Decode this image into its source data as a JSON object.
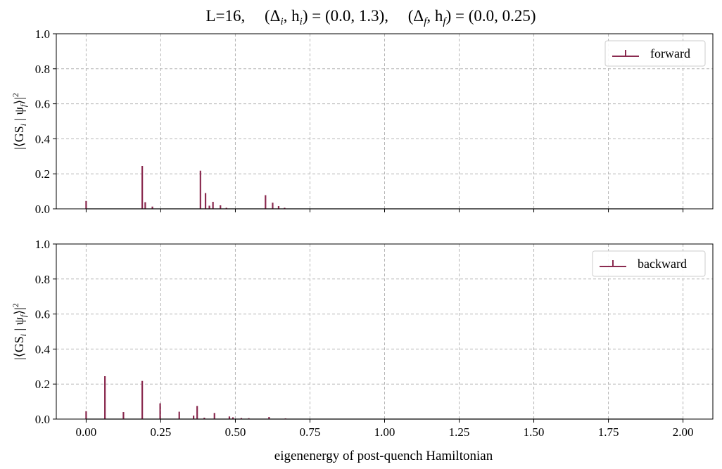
{
  "figure": {
    "title": "L=16,     (Δ_i, h_i) = (0.0, 1.3),    (Δ_f, h_f) = (0.0, 0.25)",
    "xlabel": "eigenenergy of post-quench Hamiltonian",
    "colors": {
      "stem": "#8a2a4f",
      "grid": "#b5b5b5",
      "baseline": "#000000"
    }
  },
  "chart_data": [
    {
      "type": "bar",
      "subtype": "stem",
      "panel": "top",
      "title": "L=16, (Δi, hi) = (0.0, 1.3), (Δf, hf) = (0.0, 0.25)",
      "xlabel": "",
      "ylabel": "|⟨GS_i | ψ_f⟩|²",
      "xlim": [
        -0.1,
        2.1
      ],
      "ylim": [
        0,
        1.0
      ],
      "xticks": [
        0.0,
        0.25,
        0.5,
        0.75,
        1.0,
        1.25,
        1.5,
        1.75,
        2.0
      ],
      "yticks": [
        0.0,
        0.2,
        0.4,
        0.6,
        0.8,
        1.0
      ],
      "ytick_labels": [
        "0.0",
        "0.2",
        "0.4",
        "0.6",
        "0.8",
        "1.0"
      ],
      "grid": true,
      "legend": "top-right",
      "series": [
        {
          "name": "forward",
          "x": [
            0.0,
            0.188,
            0.198,
            0.222,
            0.383,
            0.4,
            0.413,
            0.425,
            0.45,
            0.47,
            0.601,
            0.625,
            0.645,
            0.665
          ],
          "y": [
            0.045,
            0.245,
            0.038,
            0.013,
            0.218,
            0.09,
            0.018,
            0.04,
            0.02,
            0.006,
            0.078,
            0.035,
            0.016,
            0.006
          ]
        }
      ]
    },
    {
      "type": "bar",
      "subtype": "stem",
      "panel": "bottom",
      "xlabel": "eigenenergy of post-quench Hamiltonian",
      "ylabel": "|⟨GS_i | ψ_f⟩|²",
      "xlim": [
        -0.1,
        2.1
      ],
      "ylim": [
        0,
        1.0
      ],
      "xticks": [
        0.0,
        0.25,
        0.5,
        0.75,
        1.0,
        1.25,
        1.5,
        1.75,
        2.0
      ],
      "xtick_labels": [
        "0.00",
        "0.25",
        "0.50",
        "0.75",
        "1.00",
        "1.25",
        "1.50",
        "1.75",
        "2.00"
      ],
      "yticks": [
        0.0,
        0.2,
        0.4,
        0.6,
        0.8,
        1.0
      ],
      "ytick_labels": [
        "0.0",
        "0.2",
        "0.4",
        "0.6",
        "0.8",
        "1.0"
      ],
      "grid": true,
      "legend": "top-right",
      "series": [
        {
          "name": "backward",
          "x": [
            0.0,
            0.063,
            0.125,
            0.188,
            0.248,
            0.312,
            0.36,
            0.372,
            0.396,
            0.43,
            0.48,
            0.492,
            0.52,
            0.545,
            0.613,
            0.668
          ],
          "y": [
            0.045,
            0.245,
            0.04,
            0.218,
            0.09,
            0.042,
            0.02,
            0.075,
            0.008,
            0.035,
            0.015,
            0.01,
            0.006,
            0.005,
            0.012,
            0.004
          ]
        }
      ]
    }
  ]
}
